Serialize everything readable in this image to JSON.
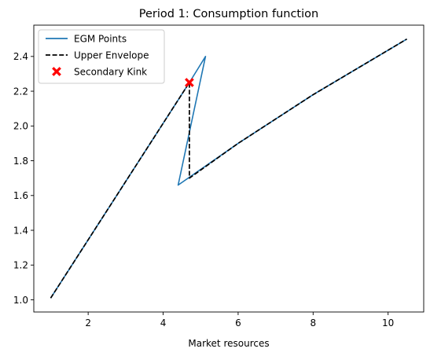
{
  "chart_data": {
    "type": "line",
    "title": "Period 1: Consumption function",
    "xlabel": "Market resources",
    "ylabel": "",
    "xlim": [
      0.55,
      10.95
    ],
    "ylim": [
      0.93,
      2.58
    ],
    "xticks": [
      2,
      4,
      6,
      8,
      10
    ],
    "xtick_labels": [
      "2",
      "4",
      "6",
      "8",
      "10"
    ],
    "yticks": [
      1.0,
      1.2,
      1.4,
      1.6,
      1.8,
      2.0,
      2.2,
      2.4
    ],
    "ytick_labels": [
      "1.0",
      "1.2",
      "1.4",
      "1.6",
      "1.8",
      "2.0",
      "2.2",
      "2.4"
    ],
    "grid": false,
    "legend_position": "top-left",
    "series": [
      {
        "name": "EGM Points",
        "color": "#1f77b4",
        "style": "solid",
        "points": [
          [
            1.0,
            1.01
          ],
          [
            4.7,
            2.25
          ],
          [
            5.13,
            2.4
          ],
          [
            4.4,
            1.66
          ],
          [
            6.0,
            1.9
          ],
          [
            8.0,
            2.18
          ],
          [
            10.5,
            2.5
          ]
        ]
      },
      {
        "name": "Upper Envelope",
        "color": "#000000",
        "style": "dashed",
        "points": [
          [
            1.0,
            1.01
          ],
          [
            4.7,
            2.25
          ],
          [
            4.7,
            1.7
          ],
          [
            6.0,
            1.9
          ],
          [
            8.0,
            2.18
          ],
          [
            10.5,
            2.5
          ]
        ]
      },
      {
        "name": "Secondary Kink",
        "color": "#ff0000",
        "style": "marker-x",
        "points": [
          [
            4.7,
            2.25
          ]
        ]
      }
    ]
  }
}
